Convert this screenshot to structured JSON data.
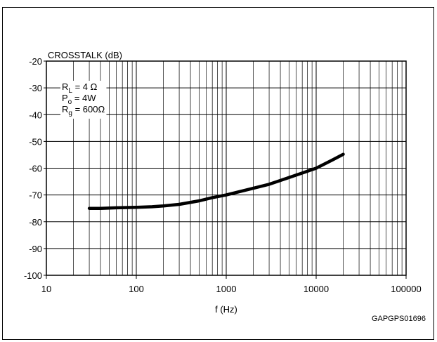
{
  "chart_data": {
    "type": "line",
    "ylabel": "CROSSTALK (dB)",
    "xlabel": "f (Hz)",
    "xscale": "log",
    "xlim": [
      10,
      100000
    ],
    "ylim": [
      -100,
      -20
    ],
    "grid": true,
    "x_ticks": [
      "10",
      "100",
      "1000",
      "10000",
      "100000"
    ],
    "y_ticks": [
      "-20",
      "-30",
      "-40",
      "-50",
      "-60",
      "-70",
      "-80",
      "-90",
      "-100"
    ],
    "conditions": [
      {
        "sym": "R",
        "sub": "L",
        "rest": " = 4 Ω"
      },
      {
        "sym": "P",
        "sub": "o",
        "rest": " = 4W"
      },
      {
        "sym": "R",
        "sub": "g",
        "rest": " = 600Ω"
      }
    ],
    "code": "GAPGPS01696",
    "series": [
      {
        "x": [
          30,
          40,
          60,
          100,
          150,
          200,
          300,
          500,
          700,
          1000,
          2000,
          3000,
          5000,
          7000,
          10000,
          15000,
          20000
        ],
        "y": [
          -75,
          -75,
          -74.8,
          -74.6,
          -74.4,
          -74.1,
          -73.5,
          -72.2,
          -71,
          -70,
          -67.5,
          -66,
          -63.5,
          -61.8,
          -60,
          -57,
          -54.8
        ]
      }
    ]
  }
}
